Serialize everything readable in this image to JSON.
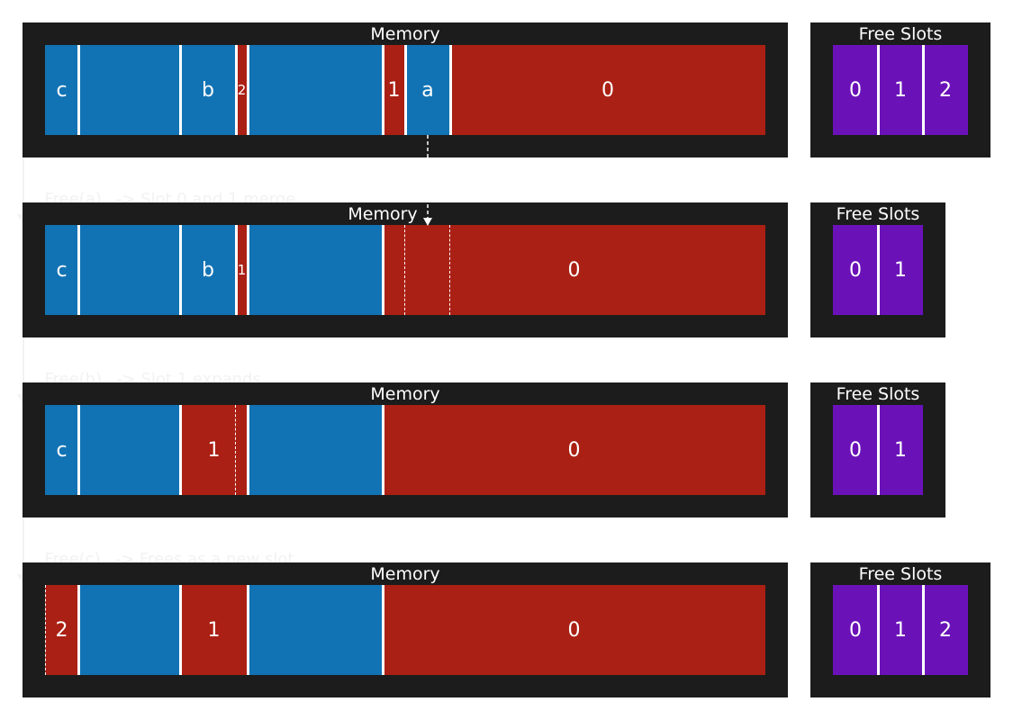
{
  "panel_titles": {
    "memory": "Memory",
    "free_slots": "Free Slots"
  },
  "steps": [
    {
      "label": "Free(a)",
      "note": "-> Slot 0 and 1 merge"
    },
    {
      "label": "Free(b)",
      "note": "-> Slot 1 expands"
    },
    {
      "label": "Free(c)",
      "note": "-> Frees as a new slot"
    }
  ],
  "rows": [
    {
      "memory": [
        {
          "label": "c",
          "kind": "used"
        },
        {
          "label": "",
          "kind": "used"
        },
        {
          "label": "b",
          "kind": "used"
        },
        {
          "label": "2",
          "kind": "free"
        },
        {
          "label": "",
          "kind": "used"
        },
        {
          "label": "1",
          "kind": "free"
        },
        {
          "label": "a",
          "kind": "used"
        },
        {
          "label": "0",
          "kind": "free"
        }
      ],
      "free_slots": [
        "0",
        "1",
        "2"
      ]
    },
    {
      "memory": [
        {
          "label": "c",
          "kind": "used"
        },
        {
          "label": "",
          "kind": "used"
        },
        {
          "label": "b",
          "kind": "used"
        },
        {
          "label": "1",
          "kind": "free"
        },
        {
          "label": "",
          "kind": "used"
        },
        {
          "label": "0",
          "kind": "free"
        }
      ],
      "free_slots": [
        "0",
        "1"
      ]
    },
    {
      "memory": [
        {
          "label": "c",
          "kind": "used"
        },
        {
          "label": "",
          "kind": "used"
        },
        {
          "label": "1",
          "kind": "free"
        },
        {
          "label": "",
          "kind": "used"
        },
        {
          "label": "0",
          "kind": "free"
        }
      ],
      "free_slots": [
        "0",
        "1"
      ]
    },
    {
      "memory": [
        {
          "label": "2",
          "kind": "free"
        },
        {
          "label": "",
          "kind": "used"
        },
        {
          "label": "1",
          "kind": "free"
        },
        {
          "label": "",
          "kind": "used"
        },
        {
          "label": "0",
          "kind": "free"
        }
      ],
      "free_slots": [
        "0",
        "1",
        "2"
      ]
    }
  ],
  "colors": {
    "used": "#1273b4",
    "free": "#aa2014",
    "slot": "#6a12b8",
    "panel": "#1c1c1c"
  }
}
